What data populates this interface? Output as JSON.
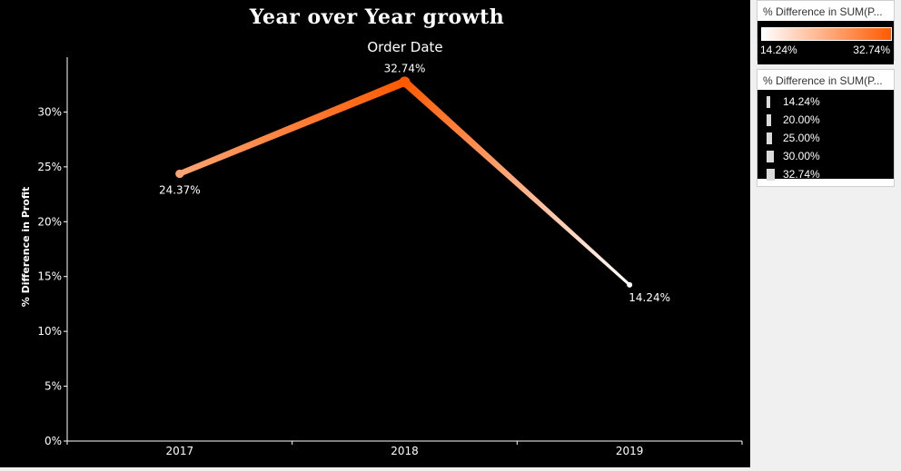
{
  "chart_data": {
    "type": "line",
    "title": "Year over Year growth",
    "column_header": "Order Date",
    "xlabel": "",
    "ylabel": "% Difference in Profit",
    "categories": [
      "2017",
      "2018",
      "2019"
    ],
    "values": [
      24.37,
      32.74,
      14.24
    ],
    "data_labels": [
      "24.37%",
      "32.74%",
      "14.24%"
    ],
    "ylim": [
      0,
      35
    ],
    "yticks": [
      {
        "value": 0,
        "label": "0%"
      },
      {
        "value": 5,
        "label": "5%"
      },
      {
        "value": 10,
        "label": "10%"
      },
      {
        "value": 15,
        "label": "15%"
      },
      {
        "value": 20,
        "label": "20%"
      },
      {
        "value": 25,
        "label": "25%"
      },
      {
        "value": 30,
        "label": "30%"
      }
    ],
    "color_scale": {
      "min_color": "#ffffff",
      "max_color": "#ff5a00"
    },
    "background": "#000000",
    "grid": false
  },
  "legends": {
    "color": {
      "title": "% Difference in SUM(P...",
      "min_label": "14.24%",
      "max_label": "32.74%"
    },
    "size": {
      "title": "% Difference in SUM(P...",
      "items": [
        {
          "label": "14.24%",
          "value": 14.24
        },
        {
          "label": "20.00%",
          "value": 20.0
        },
        {
          "label": "25.00%",
          "value": 25.0
        },
        {
          "label": "30.00%",
          "value": 30.0
        },
        {
          "label": "32.74%",
          "value": 32.74
        }
      ]
    }
  }
}
